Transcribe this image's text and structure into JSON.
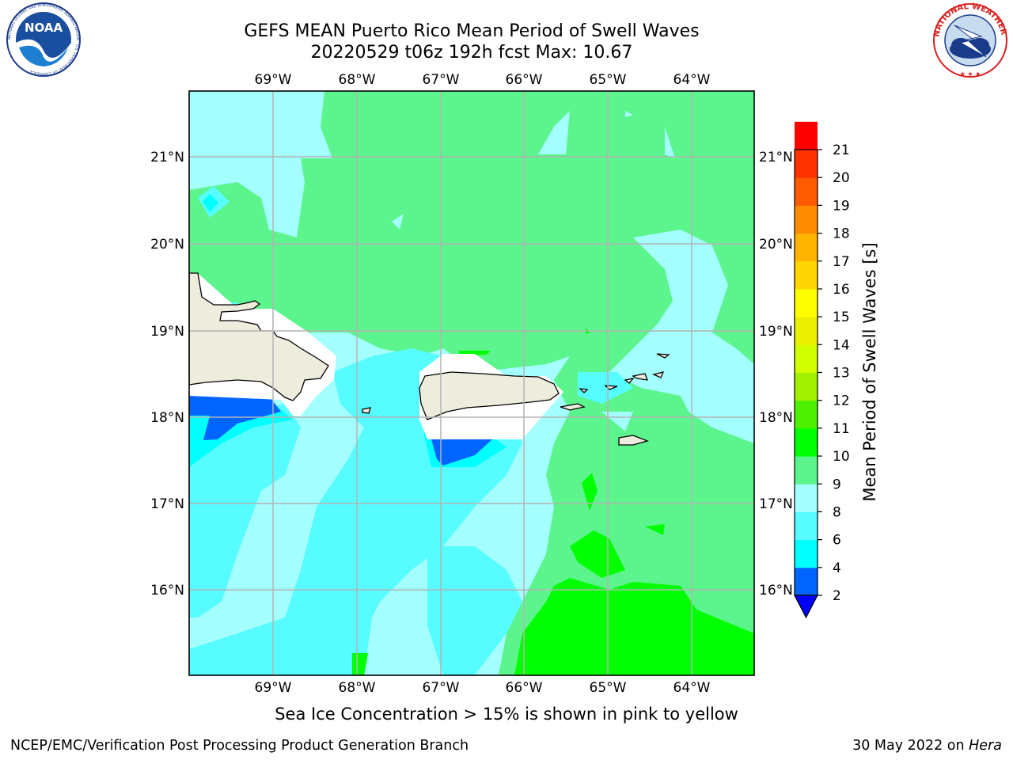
{
  "title": {
    "line1": "GEFS MEAN Puerto Rico Mean Period of Swell Waves",
    "line2": "20220529 t06z 192h fcst   Max: 10.67"
  },
  "logos": {
    "noaa": {
      "text": "NOAA",
      "ring_text": "NATIONAL OCEANIC AND ATMOSPHERIC ADMINISTRATION · U.S. DEPARTMENT OF COMMERCE"
    },
    "nws": {
      "ring_text": "NATIONAL WEATHER SERVICE"
    }
  },
  "map": {
    "lon_labels": [
      "69°W",
      "68°W",
      "67°W",
      "66°W",
      "65°W",
      "64°W"
    ],
    "lat_labels": [
      "21°N",
      "20°N",
      "19°N",
      "18°N",
      "17°N",
      "16°N"
    ],
    "land_color": "#eeecdc",
    "grid_color": "#b4b4b4"
  },
  "colorbar": {
    "label": "Mean Period of Swell Waves [s]",
    "ticks": [
      "2",
      "4",
      "6",
      "8",
      "9",
      "10",
      "11",
      "12",
      "13",
      "14",
      "15",
      "16",
      "17",
      "18",
      "19",
      "20",
      "21"
    ],
    "colors": [
      "#0064ff",
      "#00ffff",
      "#56fcff",
      "#a4ffff",
      "#5cf48c",
      "#00ff00",
      "#4ef000",
      "#a0f000",
      "#d2ff00",
      "#eaf000",
      "#ffff00",
      "#ffd700",
      "#ffb400",
      "#ff8c00",
      "#ff5a00",
      "#ff3200",
      "#ff0000"
    ],
    "extend_color": "#0000ff"
  },
  "note": "Sea Ice Concentration > 15% is shown in pink to yellow",
  "footer": {
    "left": "NCEP/EMC/Verification Post Processing Product Generation Branch",
    "date": "30 May 2022 on ",
    "host": "Hera"
  }
}
